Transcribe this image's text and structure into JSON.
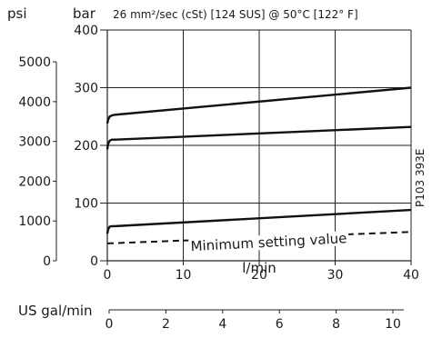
{
  "chart_data": {
    "type": "line",
    "title": "26 mm²/sec (cSt) [124 SUS] @ 50°C [122° F]",
    "xlabel": "l/min",
    "x2label": "US gal/min",
    "ylabel_primary": "bar",
    "ylabel_secondary": "psi",
    "xlim": [
      0,
      40
    ],
    "ylim": [
      0,
      400
    ],
    "x_ticks": [
      0,
      10,
      20,
      30,
      40
    ],
    "y_ticks": [
      0,
      100,
      200,
      300,
      400
    ],
    "psi_ticks": [
      0,
      1000,
      2000,
      3000,
      4000,
      5000
    ],
    "gpm_ticks": [
      0,
      2,
      4,
      6,
      8,
      10
    ],
    "grid": true,
    "code": "P103 393E",
    "series": [
      {
        "style": "solid",
        "x": [
          0,
          0.1,
          0.3,
          0.6,
          1,
          40
        ],
        "y": [
          238,
          244,
          250,
          252,
          253,
          300
        ]
      },
      {
        "style": "solid",
        "x": [
          0,
          0.1,
          0.3,
          0.6,
          1,
          40
        ],
        "y": [
          193,
          202,
          208,
          210,
          210,
          232
        ]
      },
      {
        "style": "solid",
        "x": [
          0,
          0.1,
          0.3,
          0.6,
          1,
          40
        ],
        "y": [
          47,
          54,
          59,
          60,
          60,
          88
        ]
      },
      {
        "style": "dashed",
        "x": [
          0,
          40
        ],
        "y": [
          30,
          50
        ]
      }
    ],
    "annotations": [
      {
        "text": "Minimum setting value",
        "x": 11,
        "y": 17
      }
    ]
  }
}
